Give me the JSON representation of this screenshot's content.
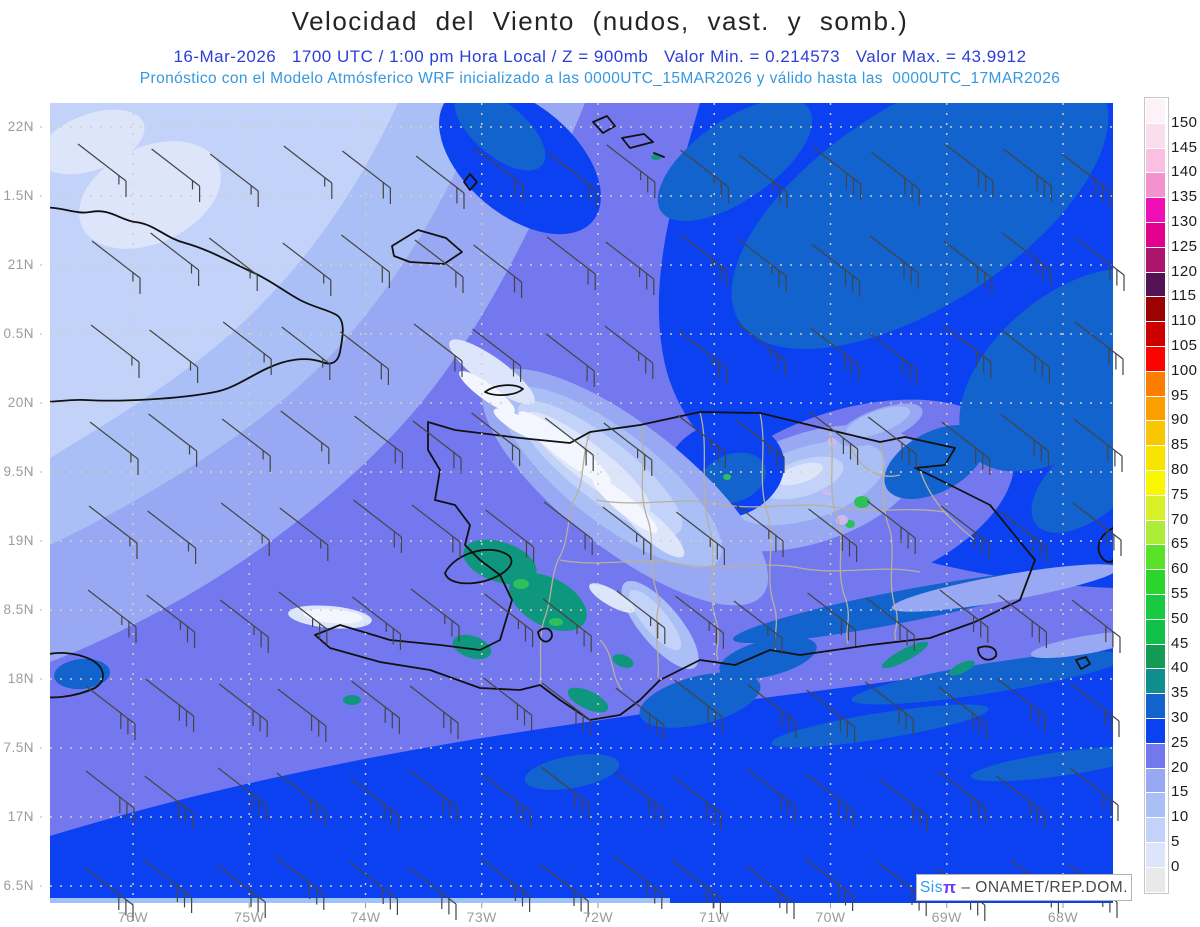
{
  "header": {
    "title": "Velocidad del Viento (nudos, vast. y somb.)",
    "line2": "16-Mar-2026   1700 UTC / 1:00 pm Hora Local / Z = 900mb   Valor Min. = 0.214573   Valor Max. = 43.9912",
    "line3": "Pronóstico con el Modelo Atmósferico WRF inicializado a las 0000UTC_15MAR2026 y válido hasta las  0000UTC_17MAR2026"
  },
  "values": {
    "date": "16-Mar-2026",
    "time_utc": "1700 UTC",
    "time_local": "1:00 pm Hora Local",
    "level": "Z = 900mb",
    "valor_min": "0.214573",
    "valor_max": "43.9912",
    "init": "0000UTC_15MAR2026",
    "valid": "0000UTC_17MAR2026"
  },
  "map": {
    "lat_labels": [
      "22N",
      "1.5N",
      "21N",
      "0.5N",
      "20N",
      "9.5N",
      "19N",
      "8.5N",
      "18N",
      "7.5N",
      "17N",
      "6.5N"
    ],
    "lon_labels": [
      "76W",
      "75W",
      "74W",
      "73W",
      "72W",
      "71W",
      "70W",
      "69W",
      "68W"
    ]
  },
  "colorbar": {
    "tick_labels": [
      "150",
      "145",
      "140",
      "135",
      "130",
      "125",
      "120",
      "115",
      "110",
      "105",
      "100",
      "95",
      "90",
      "85",
      "80",
      "75",
      "70",
      "65",
      "60",
      "55",
      "50",
      "45",
      "40",
      "35",
      "30",
      "25",
      "20",
      "15",
      "10",
      "5",
      "0"
    ],
    "cell_colors": [
      "#fdf2f8",
      "#fbdeee",
      "#f9c0e2",
      "#f492d0",
      "#ef10b5",
      "#e2008c",
      "#ac156c",
      "#531253",
      "#9c0202",
      "#cd0000",
      "#fb0400",
      "#fc7e00",
      "#fc9e00",
      "#f9c602",
      "#f8e400",
      "#f9f602",
      "#d9f028",
      "#aeec3a",
      "#5ae228",
      "#2bd52b",
      "#18ca3f",
      "#11c04b",
      "#139b53",
      "#108e8e",
      "#1263cd",
      "#0c41f2",
      "#7478ee",
      "#98a8f2",
      "#aabff5",
      "#c3d2f8",
      "#dde5fb",
      "#e9e9e9"
    ]
  },
  "branding": {
    "sis": "Sis",
    "pi": "π",
    "rest": " – ONAMET/REP.DOM."
  }
}
